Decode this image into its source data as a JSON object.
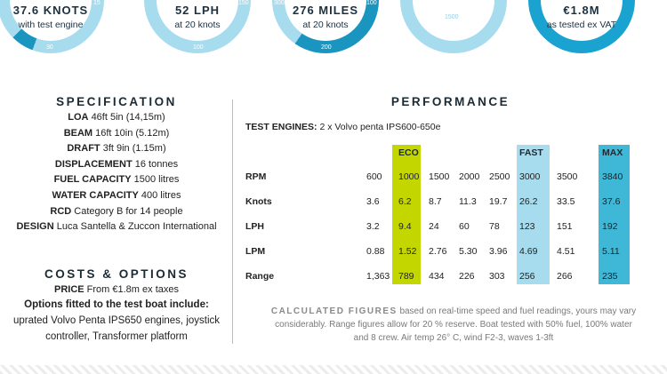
{
  "colors": {
    "light_blue": "#a7dbee",
    "mid_blue": "#3fb8d8",
    "dark_blue": "#1a95c0",
    "lime": "#c4d600",
    "text_dark": "#1b2a33"
  },
  "gauges": [
    {
      "big": "37.6 KNOTS",
      "sub": "with test engine",
      "ticks": [
        "15",
        "30"
      ]
    },
    {
      "big": "52 LPH",
      "sub": "at 20 knots",
      "ticks": [
        "150",
        "100"
      ]
    },
    {
      "big": "276 MILES",
      "sub": "at 20 knots",
      "ticks": [
        "300",
        "100",
        "200"
      ]
    },
    {
      "big": "",
      "sub": "",
      "ticks": [
        "1500"
      ]
    },
    {
      "big": "€1.8M",
      "sub": "as tested ex VAT",
      "ticks": []
    }
  ],
  "specification": {
    "heading": "SPECIFICATION",
    "rows": [
      {
        "label": "LOA",
        "value": "46ft 5in (14,15m)"
      },
      {
        "label": "BEAM",
        "value": "16ft 10in (5.12m)"
      },
      {
        "label": "DRAFT",
        "value": "3ft 9in (1.15m)"
      },
      {
        "label": "DISPLACEMENT",
        "value": "16 tonnes"
      },
      {
        "label": "FUEL CAPACITY",
        "value": "1500 litres"
      },
      {
        "label": "WATER CAPACITY",
        "value": "400 litres"
      },
      {
        "label": "RCD",
        "value": "Category B for 14 people"
      },
      {
        "label": "DESIGN",
        "value": "Luca Santella & Zuccon International"
      }
    ]
  },
  "costs": {
    "heading": "COSTS & OPTIONS",
    "price_label": "PRICE",
    "price_value": "From €1.8m ex taxes",
    "options_heading": "Options fitted to the test boat include:",
    "options_line1": "uprated Volvo Penta IPS650 engines, joystick",
    "options_line2": "controller, Transformer platform"
  },
  "performance": {
    "heading": "PERFORMANCE",
    "test_engines_label": "TEST ENGINES:",
    "test_engines_value": "2 x Volvo penta IPS600-650e",
    "column_headers": {
      "eco": "ECO",
      "fast": "FAST",
      "max": "MAX"
    },
    "rows": [
      {
        "label": "RPM",
        "values": [
          "600",
          "1000",
          "1500",
          "2000",
          "2500",
          "3000",
          "3500",
          "3840"
        ]
      },
      {
        "label": "Knots",
        "values": [
          "3.6",
          "6.2",
          "8.7",
          "11.3",
          "19.7",
          "26.2",
          "33.5",
          "37.6"
        ]
      },
      {
        "label": "LPH",
        "values": [
          "3.2",
          "9.4",
          "24",
          "60",
          "78",
          "123",
          "151",
          "192"
        ]
      },
      {
        "label": "LPM",
        "values": [
          "0.88",
          "1.52",
          "2.76",
          "5.30",
          "3.96",
          "4.69",
          "4.51",
          "5.11"
        ]
      },
      {
        "label": "Range",
        "values": [
          "1,363",
          "789",
          "434",
          "226",
          "303",
          "256",
          "266",
          "235"
        ]
      }
    ],
    "footnote_title": "CALCULATED FIGURES",
    "footnote_line1": "based on real-time speed and fuel readings, yours may vary",
    "footnote_line2": "considerably. Range figures allow for 20 % reserve. Boat tested with 50% fuel, 100% water",
    "footnote_line3": "and 8 crew. Air temp 26° C, wind F2-3, waves 1-3ft"
  }
}
